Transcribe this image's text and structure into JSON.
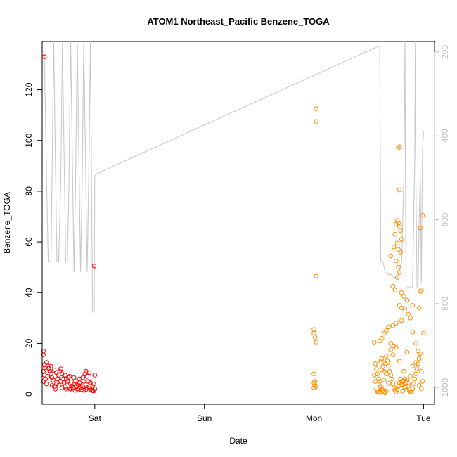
{
  "chart_data": {
    "type": "scatter",
    "title": "ATOM1 Northeast_Pacific Benzene_TOGA",
    "xlabel": "Date",
    "ylabel": "Benzene_TOGA",
    "x_unit": "days",
    "x_ticks": [
      {
        "label": "Sat",
        "value": 1
      },
      {
        "label": "Sun",
        "value": 2
      },
      {
        "label": "Mon",
        "value": 3
      },
      {
        "label": "Tue",
        "value": 4
      }
    ],
    "xlim": [
      0.52,
      4.1
    ],
    "ylim": [
      -4,
      139
    ],
    "y_ticks": [
      0,
      20,
      40,
      60,
      80,
      100,
      120
    ],
    "y2_ticks": [
      200,
      400,
      600,
      800,
      1000
    ],
    "y2lim": [
      1040,
      175
    ],
    "grid": false,
    "colors": {
      "series1": "#ff0000",
      "series2": "#ff8c00",
      "secondary_line": "#c8c8c8",
      "axis": "#000000",
      "axis_secondary": "#bbbbbb"
    },
    "series": [
      {
        "color": "#ff0000",
        "marker": "circle",
        "points": [
          [
            0.54,
            133
          ],
          [
            0.995,
            50.5
          ],
          [
            0.53,
            17
          ],
          [
            0.53,
            15.5
          ],
          [
            0.54,
            11.5
          ],
          [
            0.55,
            10.5
          ],
          [
            0.56,
            12.5
          ],
          [
            0.57,
            11
          ],
          [
            0.53,
            9
          ],
          [
            0.54,
            7.5
          ],
          [
            0.55,
            6
          ],
          [
            0.53,
            5
          ],
          [
            0.56,
            4
          ],
          [
            0.58,
            10.2
          ],
          [
            0.59,
            9
          ],
          [
            0.6,
            8
          ],
          [
            0.61,
            6.5
          ],
          [
            0.62,
            5.5
          ],
          [
            0.63,
            3
          ],
          [
            0.64,
            2
          ],
          [
            0.65,
            4
          ],
          [
            0.66,
            6
          ],
          [
            0.67,
            7.5
          ],
          [
            0.68,
            9
          ],
          [
            0.69,
            10
          ],
          [
            0.7,
            8
          ],
          [
            0.71,
            6
          ],
          [
            0.72,
            4.5
          ],
          [
            0.73,
            3
          ],
          [
            0.74,
            2
          ],
          [
            0.75,
            5
          ],
          [
            0.76,
            6.5
          ],
          [
            0.77,
            7
          ],
          [
            0.78,
            4
          ],
          [
            0.79,
            3.2
          ],
          [
            0.8,
            2.5
          ],
          [
            0.81,
            4
          ],
          [
            0.82,
            5
          ],
          [
            0.83,
            3
          ],
          [
            0.84,
            2
          ],
          [
            0.85,
            3.5
          ],
          [
            0.86,
            4.5
          ],
          [
            0.87,
            2.8
          ],
          [
            0.88,
            1.8
          ],
          [
            0.89,
            3
          ],
          [
            0.9,
            5
          ],
          [
            0.91,
            8
          ],
          [
            0.92,
            9
          ],
          [
            0.93,
            7
          ],
          [
            0.94,
            5
          ],
          [
            0.95,
            3
          ],
          [
            0.96,
            2
          ],
          [
            0.97,
            1.5
          ],
          [
            0.98,
            3
          ],
          [
            0.99,
            4
          ],
          [
            1.0,
            2
          ],
          [
            0.6,
            11
          ],
          [
            0.63,
            9.5
          ],
          [
            0.67,
            3.5
          ],
          [
            0.7,
            2.5
          ],
          [
            0.74,
            6
          ],
          [
            0.78,
            2
          ],
          [
            0.82,
            1.5
          ],
          [
            0.86,
            6
          ],
          [
            0.9,
            1.5
          ],
          [
            0.93,
            2.5
          ],
          [
            0.96,
            4.5
          ],
          [
            0.99,
            1.2
          ],
          [
            0.57,
            7
          ],
          [
            0.61,
            3.5
          ],
          [
            0.65,
            8.5
          ],
          [
            0.69,
            5
          ],
          [
            0.73,
            7.5
          ],
          [
            0.77,
            2.2
          ],
          [
            0.81,
            6.5
          ],
          [
            0.85,
            1.6
          ],
          [
            0.89,
            6.5
          ],
          [
            0.92,
            1.8
          ],
          [
            0.95,
            8.5
          ],
          [
            0.98,
            1.4
          ],
          [
            1.0,
            7.5
          ]
        ]
      },
      {
        "color": "#ff8c00",
        "marker": "circle",
        "points": [
          [
            3.02,
            112.5
          ],
          [
            3.02,
            107.5
          ],
          [
            3.02,
            46.5
          ],
          [
            3.0,
            25.5
          ],
          [
            3.0,
            24
          ],
          [
            3.01,
            22.5
          ],
          [
            3.02,
            20.5
          ],
          [
            3.0,
            8
          ],
          [
            3.01,
            5
          ],
          [
            3.0,
            4.5
          ],
          [
            3.01,
            3.5
          ],
          [
            3.02,
            3
          ],
          [
            3.0,
            2.5
          ],
          [
            3.78,
            97.5
          ],
          [
            3.77,
            97
          ],
          [
            3.78,
            80.5
          ],
          [
            3.99,
            70.5
          ],
          [
            3.97,
            65.5
          ],
          [
            3.76,
            68.5
          ],
          [
            3.77,
            67.5
          ],
          [
            3.78,
            66
          ],
          [
            3.75,
            67
          ],
          [
            3.79,
            64.5
          ],
          [
            3.74,
            63
          ],
          [
            3.8,
            61
          ],
          [
            3.76,
            59.5
          ],
          [
            3.73,
            58
          ],
          [
            3.77,
            57
          ],
          [
            3.79,
            56
          ],
          [
            3.7,
            54.5
          ],
          [
            3.75,
            52.5
          ],
          [
            3.77,
            50
          ],
          [
            3.78,
            48
          ],
          [
            3.76,
            46
          ],
          [
            3.72,
            42.5
          ],
          [
            3.74,
            41
          ],
          [
            3.8,
            40
          ],
          [
            3.82,
            38.5
          ],
          [
            3.85,
            37
          ],
          [
            3.78,
            35
          ],
          [
            3.8,
            34
          ],
          [
            3.83,
            33.5
          ],
          [
            3.9,
            35
          ],
          [
            3.96,
            34
          ],
          [
            3.98,
            41
          ],
          [
            3.97,
            40.5
          ],
          [
            3.86,
            31.5
          ],
          [
            3.88,
            30
          ],
          [
            3.8,
            29
          ],
          [
            3.75,
            28
          ],
          [
            3.72,
            27
          ],
          [
            3.68,
            26.5
          ],
          [
            3.66,
            25
          ],
          [
            3.64,
            24
          ],
          [
            3.62,
            22
          ],
          [
            3.6,
            21
          ],
          [
            3.7,
            20
          ],
          [
            3.73,
            19
          ],
          [
            3.9,
            24.5
          ],
          [
            4.0,
            24
          ],
          [
            3.93,
            20
          ],
          [
            3.95,
            17
          ],
          [
            3.55,
            20.5
          ],
          [
            3.56,
            12
          ],
          [
            3.57,
            10
          ],
          [
            3.58,
            8
          ],
          [
            3.59,
            6
          ],
          [
            3.6,
            5
          ],
          [
            3.61,
            3
          ],
          [
            3.62,
            2
          ],
          [
            3.63,
            1.5
          ],
          [
            3.64,
            1
          ],
          [
            3.65,
            0.5
          ],
          [
            3.66,
            1.2
          ],
          [
            3.55,
            7.5
          ],
          [
            3.56,
            5
          ],
          [
            3.57,
            2
          ],
          [
            3.58,
            1
          ],
          [
            3.59,
            0.8
          ],
          [
            3.6,
            0.6
          ],
          [
            3.61,
            13
          ],
          [
            3.62,
            14
          ],
          [
            3.63,
            11
          ],
          [
            3.64,
            9
          ],
          [
            3.65,
            12
          ],
          [
            3.66,
            15
          ],
          [
            3.67,
            13
          ],
          [
            3.68,
            11
          ],
          [
            3.69,
            9
          ],
          [
            3.7,
            7.5
          ],
          [
            3.71,
            6
          ],
          [
            3.72,
            4
          ],
          [
            3.73,
            2.5
          ],
          [
            3.74,
            1.5
          ],
          [
            3.75,
            0.8
          ],
          [
            3.76,
            1.8
          ],
          [
            3.77,
            3
          ],
          [
            3.78,
            4.5
          ],
          [
            3.79,
            6
          ],
          [
            3.8,
            5
          ],
          [
            3.81,
            4.8
          ],
          [
            3.82,
            5.2
          ],
          [
            3.83,
            6
          ],
          [
            3.84,
            4.5
          ],
          [
            3.85,
            5.5
          ],
          [
            3.86,
            3
          ],
          [
            3.87,
            2
          ],
          [
            3.88,
            1
          ],
          [
            3.89,
            0.8
          ],
          [
            3.9,
            2
          ],
          [
            3.91,
            4
          ],
          [
            3.92,
            6
          ],
          [
            3.93,
            8
          ],
          [
            3.94,
            10
          ],
          [
            3.95,
            12
          ],
          [
            3.96,
            14
          ],
          [
            3.97,
            16
          ],
          [
            3.98,
            9
          ],
          [
            3.99,
            5
          ],
          [
            3.7,
            17.5
          ],
          [
            3.72,
            15.5
          ],
          [
            3.75,
            18.5
          ],
          [
            3.78,
            13
          ],
          [
            3.82,
            9
          ],
          [
            3.85,
            16.5
          ],
          [
            3.88,
            7
          ],
          [
            3.9,
            11
          ],
          [
            3.93,
            12.5
          ],
          [
            3.96,
            3.5
          ],
          [
            3.98,
            2.2
          ],
          [
            3.8,
            3.8
          ],
          [
            3.84,
            1.6
          ],
          [
            3.86,
            4.2
          ],
          [
            3.83,
            2.6
          ],
          [
            3.81,
            1.2
          ],
          [
            3.68,
            4.2
          ],
          [
            3.66,
            8
          ],
          [
            3.64,
            5.5
          ],
          [
            3.62,
            9.5
          ],
          [
            3.6,
            2.7
          ]
        ]
      }
    ],
    "secondary_line": {
      "axis": "right",
      "color": "#c8c8c8",
      "points": [
        [
          0.54,
          205
        ],
        [
          0.56,
          500
        ],
        [
          0.575,
          700
        ],
        [
          0.6,
          700
        ],
        [
          0.61,
          500
        ],
        [
          0.625,
          175
        ],
        [
          0.64,
          450
        ],
        [
          0.655,
          700
        ],
        [
          0.67,
          700
        ],
        [
          0.69,
          500
        ],
        [
          0.705,
          175
        ],
        [
          0.72,
          450
        ],
        [
          0.735,
          700
        ],
        [
          0.75,
          700
        ],
        [
          0.765,
          500
        ],
        [
          0.78,
          175
        ],
        [
          0.795,
          450
        ],
        [
          0.81,
          725
        ],
        [
          0.825,
          500
        ],
        [
          0.84,
          175
        ],
        [
          0.855,
          450
        ],
        [
          0.87,
          725
        ],
        [
          0.885,
          500
        ],
        [
          0.9,
          175
        ],
        [
          0.915,
          450
        ],
        [
          0.93,
          725
        ],
        [
          0.945,
          500
        ],
        [
          0.96,
          175
        ],
        [
          0.97,
          500
        ],
        [
          0.98,
          820
        ],
        [
          0.995,
          820
        ],
        [
          1.0,
          495
        ],
        [
          1.02,
          490
        ],
        [
          3.6,
          185
        ],
        [
          3.61,
          700
        ],
        [
          3.63,
          700
        ],
        [
          3.65,
          725
        ],
        [
          3.67,
          730
        ],
        [
          3.7,
          730
        ],
        [
          3.73,
          738
        ],
        [
          3.76,
          738
        ],
        [
          3.8,
          700
        ],
        [
          3.82,
          500
        ],
        [
          3.83,
          175
        ],
        [
          3.835,
          500
        ],
        [
          3.84,
          760
        ],
        [
          3.86,
          760
        ],
        [
          3.88,
          760
        ],
        [
          3.9,
          760
        ],
        [
          3.92,
          450
        ],
        [
          3.925,
          175
        ],
        [
          3.93,
          500
        ],
        [
          3.94,
          760
        ],
        [
          3.95,
          760
        ],
        [
          3.96,
          600
        ],
        [
          3.97,
          490
        ],
        [
          3.98,
          750
        ],
        [
          3.99,
          440
        ],
        [
          4.0,
          390
        ]
      ]
    }
  }
}
